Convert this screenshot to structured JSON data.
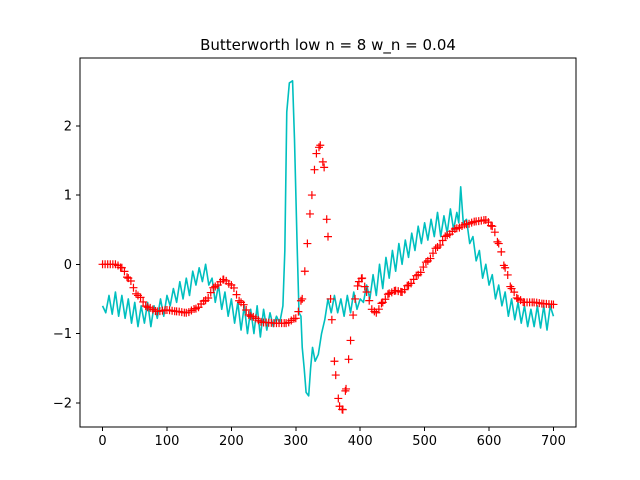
{
  "chart_data": {
    "type": "line",
    "title": "Butterworth low n = 8  w_n = 0.04",
    "xlabel": "",
    "ylabel": "",
    "xlim": [
      -35,
      735
    ],
    "ylim": [
      -2.35,
      2.98
    ],
    "xticks": [
      0,
      100,
      200,
      300,
      400,
      500,
      600,
      700
    ],
    "yticks": [
      -2,
      -1,
      0,
      1,
      2
    ],
    "grid": false,
    "legend": "none",
    "series": [
      {
        "style": "line",
        "color": "#00bfbf",
        "points": [
          [
            0,
            -0.6
          ],
          [
            5,
            -0.7
          ],
          [
            10,
            -0.45
          ],
          [
            15,
            -0.72
          ],
          [
            20,
            -0.4
          ],
          [
            25,
            -0.75
          ],
          [
            30,
            -0.45
          ],
          [
            35,
            -0.78
          ],
          [
            40,
            -0.5
          ],
          [
            45,
            -0.85
          ],
          [
            50,
            -0.55
          ],
          [
            55,
            -0.9
          ],
          [
            60,
            -0.6
          ],
          [
            65,
            -0.85
          ],
          [
            70,
            -0.55
          ],
          [
            75,
            -0.9
          ],
          [
            80,
            -0.6
          ],
          [
            85,
            -0.78
          ],
          [
            90,
            -0.5
          ],
          [
            95,
            -0.75
          ],
          [
            100,
            -0.45
          ],
          [
            105,
            -0.6
          ],
          [
            110,
            -0.35
          ],
          [
            115,
            -0.55
          ],
          [
            120,
            -0.25
          ],
          [
            125,
            -0.5
          ],
          [
            130,
            -0.2
          ],
          [
            135,
            -0.45
          ],
          [
            140,
            -0.1
          ],
          [
            145,
            -0.3
          ],
          [
            150,
            -0.05
          ],
          [
            155,
            -0.25
          ],
          [
            160,
            0.0
          ],
          [
            165,
            -0.3
          ],
          [
            170,
            -0.2
          ],
          [
            175,
            -0.55
          ],
          [
            180,
            -0.3
          ],
          [
            185,
            -0.65
          ],
          [
            190,
            -0.4
          ],
          [
            195,
            -0.75
          ],
          [
            200,
            -0.5
          ],
          [
            205,
            -0.85
          ],
          [
            210,
            -0.55
          ],
          [
            215,
            -0.95
          ],
          [
            220,
            -0.6
          ],
          [
            225,
            -1.0
          ],
          [
            230,
            -0.65
          ],
          [
            235,
            -1.0
          ],
          [
            240,
            -0.6
          ],
          [
            245,
            -1.05
          ],
          [
            250,
            -0.65
          ],
          [
            255,
            -0.95
          ],
          [
            260,
            -0.7
          ],
          [
            265,
            -0.9
          ],
          [
            270,
            -0.75
          ],
          [
            275,
            -0.85
          ],
          [
            280,
            -0.6
          ],
          [
            283,
            0.2
          ],
          [
            286,
            2.2
          ],
          [
            290,
            2.62
          ],
          [
            295,
            2.65
          ],
          [
            298,
            1.8
          ],
          [
            302,
            0.3
          ],
          [
            305,
            -0.7
          ],
          [
            308,
            -0.75
          ],
          [
            310,
            -1.2
          ],
          [
            313,
            -1.5
          ],
          [
            316,
            -1.85
          ],
          [
            320,
            -1.9
          ],
          [
            323,
            -1.5
          ],
          [
            326,
            -1.2
          ],
          [
            330,
            -1.4
          ],
          [
            335,
            -1.3
          ],
          [
            340,
            -1.0
          ],
          [
            345,
            -0.8
          ],
          [
            350,
            -0.5
          ],
          [
            355,
            -0.7
          ],
          [
            360,
            -0.45
          ],
          [
            365,
            -0.7
          ],
          [
            370,
            -0.5
          ],
          [
            375,
            -0.75
          ],
          [
            380,
            -0.45
          ],
          [
            385,
            -0.7
          ],
          [
            390,
            -0.4
          ],
          [
            395,
            -0.65
          ],
          [
            400,
            -0.5
          ],
          [
            405,
            -0.55
          ],
          [
            410,
            -0.3
          ],
          [
            415,
            -0.5
          ],
          [
            420,
            -0.15
          ],
          [
            425,
            -0.45
          ],
          [
            430,
            0.0
          ],
          [
            435,
            -0.35
          ],
          [
            440,
            0.1
          ],
          [
            445,
            -0.2
          ],
          [
            450,
            0.2
          ],
          [
            455,
            -0.1
          ],
          [
            460,
            0.3
          ],
          [
            465,
            0.0
          ],
          [
            470,
            0.35
          ],
          [
            475,
            0.1
          ],
          [
            480,
            0.45
          ],
          [
            485,
            0.2
          ],
          [
            490,
            0.55
          ],
          [
            495,
            0.3
          ],
          [
            500,
            0.6
          ],
          [
            505,
            0.35
          ],
          [
            510,
            0.65
          ],
          [
            515,
            0.4
          ],
          [
            520,
            0.75
          ],
          [
            525,
            0.4
          ],
          [
            530,
            0.7
          ],
          [
            535,
            0.45
          ],
          [
            540,
            0.8
          ],
          [
            545,
            0.5
          ],
          [
            550,
            0.75
          ],
          [
            553,
            0.6
          ],
          [
            556,
            1.12
          ],
          [
            560,
            0.6
          ],
          [
            565,
            0.65
          ],
          [
            570,
            0.3
          ],
          [
            575,
            0.4
          ],
          [
            580,
            0.05
          ],
          [
            585,
            0.2
          ],
          [
            590,
            -0.2
          ],
          [
            595,
            0.0
          ],
          [
            600,
            -0.3
          ],
          [
            605,
            -0.15
          ],
          [
            610,
            -0.5
          ],
          [
            615,
            -0.3
          ],
          [
            620,
            -0.6
          ],
          [
            625,
            -0.4
          ],
          [
            630,
            -0.75
          ],
          [
            635,
            -0.5
          ],
          [
            640,
            -0.8
          ],
          [
            645,
            -0.55
          ],
          [
            650,
            -0.85
          ],
          [
            655,
            -0.6
          ],
          [
            660,
            -0.9
          ],
          [
            665,
            -0.65
          ],
          [
            670,
            -0.9
          ],
          [
            675,
            -0.6
          ],
          [
            680,
            -0.92
          ],
          [
            685,
            -0.6
          ],
          [
            690,
            -0.95
          ],
          [
            695,
            -0.6
          ],
          [
            700,
            -0.75
          ]
        ]
      },
      {
        "style": "markers",
        "marker": "+",
        "color": "#ff0000",
        "points": [
          [
            0,
            0.0
          ],
          [
            20,
            0.0
          ],
          [
            30,
            -0.05
          ],
          [
            40,
            -0.2
          ],
          [
            55,
            -0.45
          ],
          [
            70,
            -0.62
          ],
          [
            85,
            -0.68
          ],
          [
            100,
            -0.66
          ],
          [
            115,
            -0.68
          ],
          [
            130,
            -0.7
          ],
          [
            145,
            -0.64
          ],
          [
            160,
            -0.52
          ],
          [
            175,
            -0.32
          ],
          [
            188,
            -0.22
          ],
          [
            200,
            -0.3
          ],
          [
            215,
            -0.55
          ],
          [
            230,
            -0.75
          ],
          [
            250,
            -0.84
          ],
          [
            270,
            -0.85
          ],
          [
            285,
            -0.85
          ],
          [
            300,
            -0.78
          ],
          [
            310,
            -0.5
          ],
          [
            318,
            0.3
          ],
          [
            325,
            1.0
          ],
          [
            332,
            1.6
          ],
          [
            338,
            1.72
          ],
          [
            344,
            1.4
          ],
          [
            350,
            0.4
          ],
          [
            356,
            -0.8
          ],
          [
            362,
            -1.6
          ],
          [
            368,
            -2.05
          ],
          [
            373,
            -2.1
          ],
          [
            378,
            -1.8
          ],
          [
            385,
            -1.1
          ],
          [
            392,
            -0.5
          ],
          [
            398,
            -0.25
          ],
          [
            403,
            -0.2
          ],
          [
            410,
            -0.4
          ],
          [
            418,
            -0.65
          ],
          [
            425,
            -0.7
          ],
          [
            435,
            -0.55
          ],
          [
            445,
            -0.42
          ],
          [
            455,
            -0.38
          ],
          [
            465,
            -0.4
          ],
          [
            475,
            -0.3
          ],
          [
            490,
            -0.15
          ],
          [
            505,
            0.05
          ],
          [
            520,
            0.25
          ],
          [
            535,
            0.42
          ],
          [
            550,
            0.52
          ],
          [
            565,
            0.58
          ],
          [
            580,
            0.62
          ],
          [
            595,
            0.64
          ],
          [
            605,
            0.55
          ],
          [
            615,
            0.3
          ],
          [
            625,
            -0.05
          ],
          [
            635,
            -0.35
          ],
          [
            645,
            -0.5
          ],
          [
            655,
            -0.55
          ],
          [
            670,
            -0.55
          ],
          [
            685,
            -0.57
          ],
          [
            700,
            -0.58
          ]
        ]
      }
    ]
  }
}
